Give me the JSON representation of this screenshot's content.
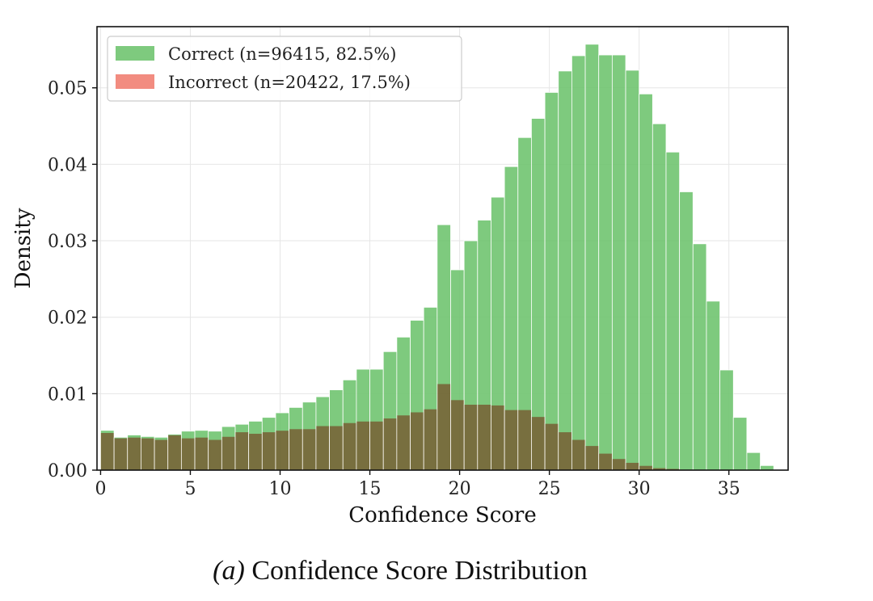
{
  "caption": {
    "lead": "(a)",
    "text": "Confidence Score Distribution"
  },
  "chart_data": {
    "type": "bar",
    "xlabel": "Confidence Score",
    "ylabel": "Density",
    "xlim": [
      -0.2,
      38.3
    ],
    "ylim": [
      0,
      0.058
    ],
    "xticks": [
      0,
      5,
      10,
      15,
      20,
      25,
      30,
      35
    ],
    "yticks": [
      0.0,
      0.01,
      0.02,
      0.03,
      0.04,
      0.05
    ],
    "ytick_labels": [
      "0.00",
      "0.01",
      "0.02",
      "0.03",
      "0.04",
      "0.05"
    ],
    "grid": true,
    "legend_position": "top-left",
    "bin_width": 0.75,
    "bin_start": 0,
    "series": [
      {
        "name": "Correct (n=96415, 82.5%)",
        "color": "#6cc36c",
        "values": [
          0.0052,
          0.0043,
          0.0046,
          0.0044,
          0.0043,
          0.0047,
          0.0051,
          0.0052,
          0.0051,
          0.0057,
          0.006,
          0.0064,
          0.0069,
          0.0075,
          0.0082,
          0.0089,
          0.0096,
          0.0105,
          0.0118,
          0.0132,
          0.0132,
          0.0155,
          0.0174,
          0.0196,
          0.0213,
          0.0321,
          0.0262,
          0.03,
          0.0327,
          0.0357,
          0.0397,
          0.0435,
          0.046,
          0.0494,
          0.0522,
          0.0542,
          0.0557,
          0.0543,
          0.0543,
          0.0523,
          0.0492,
          0.0453,
          0.0416,
          0.0364,
          0.0296,
          0.0221,
          0.0131,
          0.0069,
          0.0023,
          0.0006
        ]
      },
      {
        "name": "Incorrect (n=20422, 17.5%)",
        "color": "#f07c6e",
        "values": [
          0.0049,
          0.0042,
          0.0043,
          0.0042,
          0.004,
          0.0046,
          0.0042,
          0.0043,
          0.004,
          0.0044,
          0.005,
          0.0048,
          0.005,
          0.0052,
          0.0054,
          0.0054,
          0.0058,
          0.0058,
          0.0062,
          0.0064,
          0.0064,
          0.0068,
          0.0072,
          0.0076,
          0.008,
          0.0113,
          0.0092,
          0.0086,
          0.0086,
          0.0085,
          0.0079,
          0.0079,
          0.007,
          0.0061,
          0.005,
          0.004,
          0.0032,
          0.0022,
          0.0015,
          0.001,
          0.0006,
          0.0003,
          0.0002,
          0.0001,
          0.0001,
          0.0,
          0.0,
          0.0,
          0.0,
          0.0
        ]
      }
    ]
  }
}
